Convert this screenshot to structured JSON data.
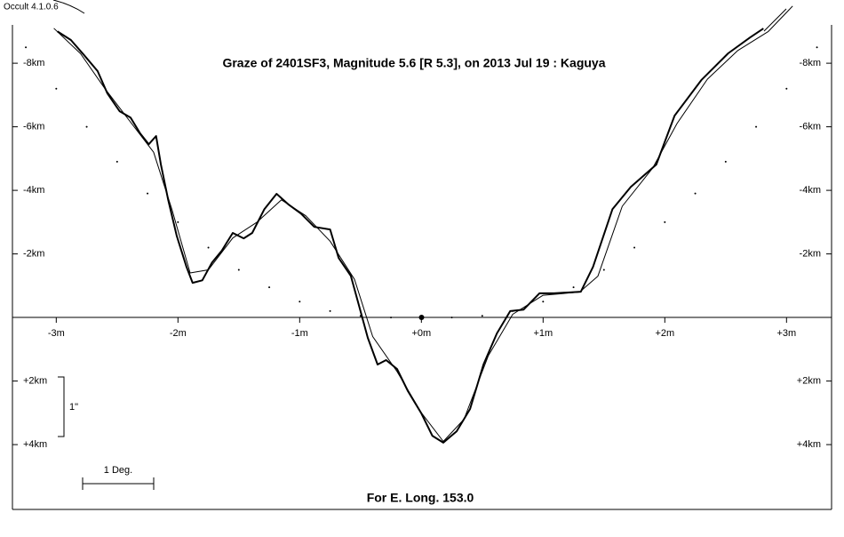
{
  "chart_data": {
    "type": "line",
    "software": "Occult 4.1.0.6",
    "title": "Graze of  2401SF3,  Magnitude 5.6 [R 5.3],  on 2013 Jul 19  :  Kaguya",
    "footer": "For E. Long. 153.0",
    "annotations": [
      "1 Deg.",
      "1\""
    ],
    "xlim": [
      -3.36,
      3.37
    ],
    "ylim": [
      -9.15,
      6.04
    ],
    "xticks": [
      {
        "value": -3,
        "label": "-3m"
      },
      {
        "value": -2,
        "label": "-2m"
      },
      {
        "value": -1,
        "label": "-1m"
      },
      {
        "value": 0,
        "label": "+0m"
      },
      {
        "value": 1,
        "label": "+1m"
      },
      {
        "value": 2,
        "label": "+2m"
      },
      {
        "value": 3,
        "label": "+3m"
      }
    ],
    "yticks": [
      {
        "value": -8,
        "label": "-8km"
      },
      {
        "value": -6,
        "label": "-6km"
      },
      {
        "value": -4,
        "label": "-4km"
      },
      {
        "value": -2,
        "label": "-2km"
      },
      {
        "value": 2,
        "label": "+2km"
      },
      {
        "value": 4,
        "label": "+4km"
      }
    ],
    "series": [
      {
        "color": "#000000",
        "style": "thick",
        "x": [
          -2.99,
          -2.88,
          -2.77,
          -2.66,
          -2.58,
          -2.48,
          -2.39,
          -2.31,
          -2.24,
          -2.18,
          -2.14,
          -2.08,
          -2.01,
          -1.93,
          -1.88,
          -1.8,
          -1.72,
          -1.64,
          -1.55,
          -1.46,
          -1.39,
          -1.29,
          -1.19,
          -1.09,
          -0.99,
          -0.88,
          -0.75,
          -0.68,
          -0.58,
          -0.51,
          -0.44,
          -0.36,
          -0.29,
          -0.2,
          -0.11,
          0.0,
          0.09,
          0.18,
          0.29,
          0.4,
          0.51,
          0.62,
          0.73,
          0.84,
          0.97,
          1.09,
          1.31,
          1.41,
          1.57,
          1.72,
          1.93,
          2.08,
          2.3,
          2.52,
          2.7,
          2.81
        ],
        "values": [
          -9.0,
          -8.73,
          -8.25,
          -7.75,
          -7.05,
          -6.49,
          -6.29,
          -5.79,
          -5.45,
          -5.71,
          -4.81,
          -3.69,
          -2.57,
          -1.59,
          -1.09,
          -1.17,
          -1.73,
          -2.1,
          -2.66,
          -2.49,
          -2.66,
          -3.41,
          -3.89,
          -3.55,
          -3.27,
          -2.85,
          -2.77,
          -1.87,
          -1.31,
          -0.34,
          0.64,
          1.48,
          1.34,
          1.62,
          2.32,
          3.02,
          3.72,
          3.94,
          3.58,
          2.88,
          1.48,
          0.5,
          -0.2,
          -0.25,
          -0.76,
          -0.76,
          -0.81,
          -1.59,
          -3.41,
          -4.11,
          -4.81,
          -6.35,
          -7.47,
          -8.31,
          -8.81,
          -9.09
        ]
      },
      {
        "color": "#000000",
        "style": "thin",
        "x": [
          -3.02,
          -2.8,
          -2.6,
          -2.4,
          -2.2,
          -2.05,
          -1.9,
          -1.75,
          -1.55,
          -1.35,
          -1.15,
          -0.95,
          -0.75,
          -0.55,
          -0.4,
          -0.2,
          0.0,
          0.18,
          0.35,
          0.55,
          0.75,
          1.0,
          1.3,
          1.45,
          1.65,
          1.9,
          2.1,
          2.35,
          2.6,
          2.85,
          3.05
        ],
        "values": [
          -9.1,
          -8.3,
          -7.2,
          -6.2,
          -5.2,
          -3.4,
          -1.4,
          -1.5,
          -2.5,
          -3.0,
          -3.7,
          -3.2,
          -2.4,
          -1.2,
          0.6,
          1.7,
          3.0,
          3.9,
          3.2,
          1.2,
          -0.1,
          -0.7,
          -0.8,
          -1.3,
          -3.5,
          -4.7,
          -6.1,
          -7.5,
          -8.4,
          -9.0,
          -9.8
        ]
      },
      {
        "color": "#000000",
        "style": "dotted",
        "x": [
          -3.25,
          -3.0,
          -2.75,
          -2.5,
          -2.25,
          -2.0,
          -1.75,
          -1.5,
          -1.25,
          -1.0,
          -0.75,
          -0.5,
          -0.25,
          0.0,
          0.25,
          0.5,
          0.75,
          1.0,
          1.25,
          1.5,
          1.75,
          2.0,
          2.25,
          2.5,
          2.75,
          3.0,
          3.25
        ],
        "values": [
          -8.5,
          -7.2,
          -6.0,
          -4.9,
          -3.9,
          -3.0,
          -2.2,
          -1.5,
          -0.95,
          -0.5,
          -0.2,
          -0.05,
          0,
          0,
          0,
          -0.05,
          -0.2,
          -0.5,
          -0.95,
          -1.5,
          -2.2,
          -3.0,
          -3.9,
          -4.9,
          -6.0,
          -7.2,
          -8.5
        ]
      }
    ]
  }
}
